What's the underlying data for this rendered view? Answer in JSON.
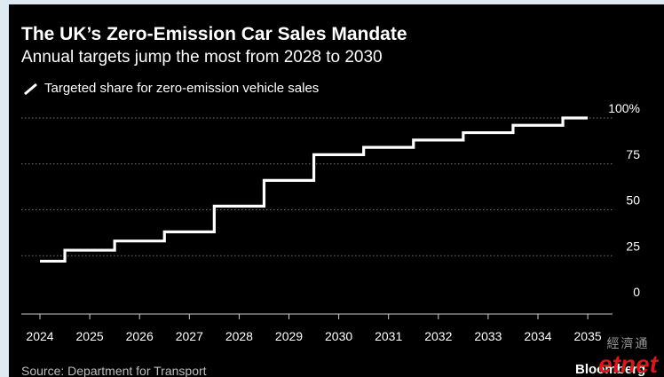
{
  "header": {
    "title": "The UK’s Zero-Emission Car Sales Mandate",
    "subtitle": "Annual targets jump the most from 2028 to 2030"
  },
  "legend": {
    "label": "Targeted share for zero-emission vehicle sales",
    "icon": "pencil-line-icon"
  },
  "footer": {
    "source": "Source: Department for Transport",
    "brand": "Bloomberg"
  },
  "watermark": {
    "chinese": "經濟通",
    "latin": "etnet"
  },
  "colors": {
    "background": "#000000",
    "line": "#ffffff",
    "grid": "#777777",
    "text": "#ffffff",
    "page": "#dfe9f2"
  },
  "chart_data": {
    "type": "line",
    "step": true,
    "x": [
      2024,
      2025,
      2026,
      2027,
      2028,
      2029,
      2030,
      2031,
      2032,
      2033,
      2034,
      2035
    ],
    "series": [
      {
        "values": [
          22,
          28,
          33,
          38,
          52,
          66,
          80,
          84,
          88,
          92,
          96,
          100
        ]
      }
    ],
    "xticks": [
      "2024",
      "2025",
      "2026",
      "2027",
      "2028",
      "2029",
      "2030",
      "2031",
      "2032",
      "2033",
      "2034",
      "2035"
    ],
    "yticks": [
      "0",
      "25",
      "50",
      "75",
      "100%"
    ],
    "ytick_values": [
      0,
      25,
      50,
      75,
      100
    ],
    "ylim": [
      0,
      100
    ],
    "grid": "horizontal-dotted",
    "yaxis_side": "right"
  }
}
